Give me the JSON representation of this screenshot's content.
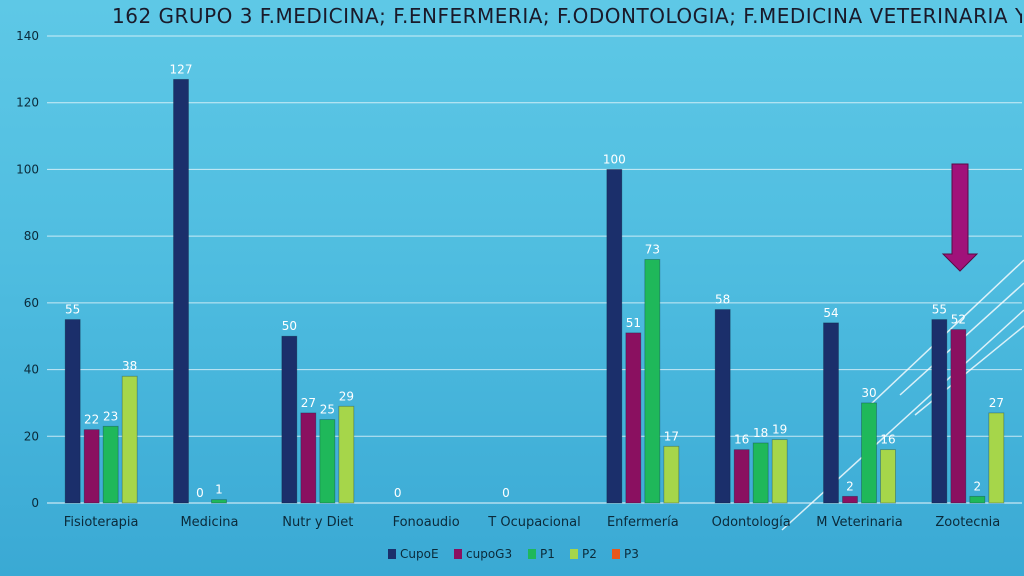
{
  "title": "162  GRUPO 3  F.MEDICINA;  F.ENFERMERIA;  F.ODONTOLOGIA;  F.MEDICINA VETERINARIA Y",
  "colors": {
    "CupoE": "#1b2f6b",
    "cupoG3": "#8a1060",
    "P1": "#1fb85a",
    "P2": "#a6d64a",
    "P3": "#e8581c",
    "arrow": "#a0127a"
  },
  "chart_data": {
    "type": "bar",
    "title": "162  GRUPO 3  F.MEDICINA;  F.ENFERMERIA;  F.ODONTOLOGIA;  F.MEDICINA VETERINARIA Y",
    "xlabel": "",
    "ylabel": "",
    "ylim": [
      0,
      140
    ],
    "yticks": [
      0,
      20,
      40,
      60,
      80,
      100,
      120,
      140
    ],
    "grid": true,
    "legend_position": "bottom",
    "categories": [
      "Fisioterapia",
      "Medicina",
      "Nutr y Diet",
      "Fonoaudio",
      "T Ocupacional",
      "Enfermería",
      "Odontología",
      "M Veterinaria",
      "Zootecnia"
    ],
    "series": [
      {
        "name": "CupoE",
        "values": [
          55,
          127,
          50,
          0,
          0,
          100,
          58,
          54,
          55
        ],
        "labels": [
          "55",
          "127",
          "50",
          "0",
          "0",
          "100",
          "58",
          "54",
          "55"
        ]
      },
      {
        "name": "cupoG3",
        "values": [
          22,
          0,
          27,
          null,
          null,
          51,
          16,
          2,
          52
        ],
        "labels": [
          "22",
          "0",
          "27",
          "",
          "",
          "51",
          "16",
          "2",
          "52"
        ]
      },
      {
        "name": "P1",
        "values": [
          23,
          1,
          25,
          null,
          null,
          73,
          18,
          30,
          2
        ],
        "labels": [
          "23",
          "1",
          "25",
          "",
          "",
          "73",
          "18",
          "30",
          "2"
        ]
      },
      {
        "name": "P2",
        "values": [
          38,
          null,
          29,
          null,
          null,
          17,
          19,
          16,
          27
        ],
        "labels": [
          "38",
          "",
          "29",
          "",
          "",
          "17",
          "19",
          "16",
          "27"
        ]
      },
      {
        "name": "P3",
        "values": [
          null,
          null,
          null,
          null,
          null,
          null,
          null,
          null,
          null
        ],
        "labels": [
          "",
          "",
          "",
          "",
          "",
          "",
          "",
          "",
          ""
        ]
      }
    ]
  }
}
